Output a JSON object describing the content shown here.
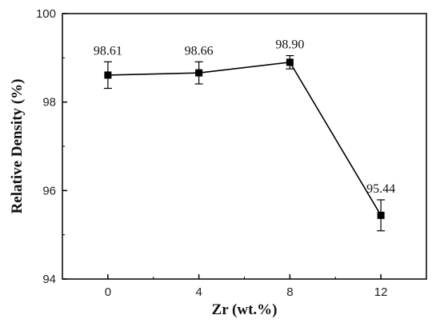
{
  "chart_data": {
    "type": "line",
    "xlabel": "Zr (wt.%)",
    "ylabel": "Relative Density (%)",
    "xlim": [
      -2,
      14
    ],
    "ylim": [
      94,
      100
    ],
    "x_ticks": [
      0,
      4,
      8,
      12
    ],
    "x_tick_labels": [
      "0",
      "4",
      "8",
      "12"
    ],
    "y_ticks": [
      94,
      96,
      98,
      100
    ],
    "y_tick_labels": [
      "94",
      "96",
      "98",
      "100"
    ],
    "grid": false,
    "series": [
      {
        "marker": "square",
        "color": "#000000",
        "x": [
          0,
          4,
          8,
          12
        ],
        "y": [
          98.61,
          98.66,
          98.9,
          95.44
        ],
        "error": [
          0.3,
          0.25,
          0.15,
          0.35
        ],
        "labels": [
          "98.61",
          "98.66",
          "98.90",
          "95.44"
        ]
      }
    ]
  }
}
